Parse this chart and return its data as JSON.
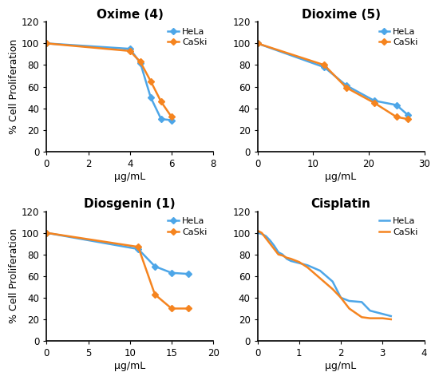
{
  "panels": [
    {
      "title": "Oxime (4)",
      "xlim": [
        0,
        8
      ],
      "xticks": [
        0,
        2,
        4,
        6,
        8
      ],
      "ylim": [
        0,
        120
      ],
      "yticks": [
        0,
        20,
        40,
        60,
        80,
        100,
        120
      ],
      "hela_x": [
        0,
        4.0,
        4.5,
        5.0,
        5.5,
        6.0
      ],
      "hela_y": [
        100,
        95,
        82,
        50,
        30,
        29
      ],
      "caski_x": [
        0,
        4.0,
        4.5,
        5.0,
        5.5,
        6.0
      ],
      "caski_y": [
        100,
        93,
        83,
        65,
        46,
        32
      ],
      "use_markers": true
    },
    {
      "title": "Dioxime (5)",
      "xlim": [
        0,
        30
      ],
      "xticks": [
        0,
        10,
        20,
        30
      ],
      "ylim": [
        0,
        120
      ],
      "yticks": [
        0,
        20,
        40,
        60,
        80,
        100,
        120
      ],
      "hela_x": [
        0,
        12,
        16,
        21,
        25,
        27
      ],
      "hela_y": [
        100,
        78,
        61,
        47,
        43,
        34
      ],
      "caski_x": [
        0,
        12,
        16,
        21,
        25,
        27
      ],
      "caski_y": [
        100,
        80,
        59,
        45,
        32,
        30
      ],
      "use_markers": true
    },
    {
      "title": "Diosgenin (1)",
      "xlim": [
        0,
        20
      ],
      "xticks": [
        0,
        5,
        10,
        15,
        20
      ],
      "ylim": [
        0,
        120
      ],
      "yticks": [
        0,
        20,
        40,
        60,
        80,
        100,
        120
      ],
      "hela_x": [
        0,
        11,
        13,
        15,
        17
      ],
      "hela_y": [
        100,
        85,
        69,
        63,
        62
      ],
      "caski_x": [
        0,
        11,
        13,
        15,
        17
      ],
      "caski_y": [
        100,
        87,
        43,
        30,
        30
      ],
      "use_markers": true
    },
    {
      "title": "Cisplatin",
      "xlim": [
        0,
        4
      ],
      "xticks": [
        0,
        1,
        2,
        3,
        4
      ],
      "ylim": [
        0,
        120
      ],
      "yticks": [
        0,
        20,
        40,
        60,
        80,
        100,
        120
      ],
      "hela_x": [
        0,
        0.1,
        0.2,
        0.3,
        0.4,
        0.5,
        0.6,
        0.7,
        0.8,
        1.0,
        1.2,
        1.5,
        1.8,
        2.0,
        2.2,
        2.5,
        2.7,
        3.0,
        3.2
      ],
      "hela_y": [
        100,
        99,
        97,
        93,
        88,
        82,
        80,
        76,
        74,
        72,
        70,
        65,
        55,
        40,
        37,
        36,
        28,
        25,
        23
      ],
      "caski_x": [
        0,
        0.1,
        0.2,
        0.3,
        0.4,
        0.5,
        0.6,
        0.7,
        0.8,
        1.0,
        1.2,
        1.5,
        1.8,
        2.0,
        2.2,
        2.5,
        2.7,
        3.0,
        3.2
      ],
      "caski_y": [
        102,
        100,
        95,
        90,
        85,
        80,
        79,
        77,
        76,
        73,
        68,
        58,
        48,
        40,
        30,
        22,
        21,
        21,
        20
      ],
      "use_markers": false
    }
  ],
  "hela_color": "#4da6e8",
  "caski_color": "#f5841f",
  "marker": "D",
  "marker_size": 4,
  "linewidth": 1.8,
  "xlabel": "μg/mL",
  "ylabel": "% Cell Proliferation",
  "legend_hela": "HeLa",
  "legend_caski": "CaSki",
  "title_fontsize": 11,
  "label_fontsize": 9,
  "tick_fontsize": 8.5
}
